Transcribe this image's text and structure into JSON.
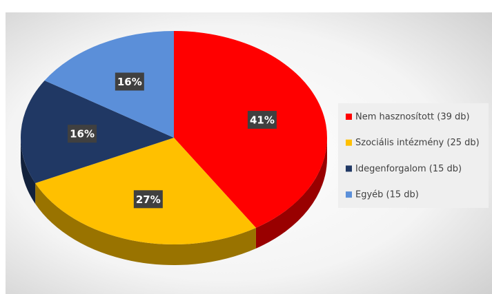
{
  "chart_data": {
    "type": "pie",
    "categories": [
      "Nem hasznosított (39 db)",
      "Szociális intézmény (25 db)",
      "Idegenforgalom (15 db)",
      "Egyéb (15 db)"
    ],
    "values": [
      41,
      27,
      16,
      16
    ],
    "value_labels": [
      "41%",
      "27%",
      "16%",
      "16%"
    ],
    "colors": [
      "#ff0000",
      "#ffc000",
      "#203864",
      "#5b8fd9"
    ],
    "legend": "right"
  }
}
